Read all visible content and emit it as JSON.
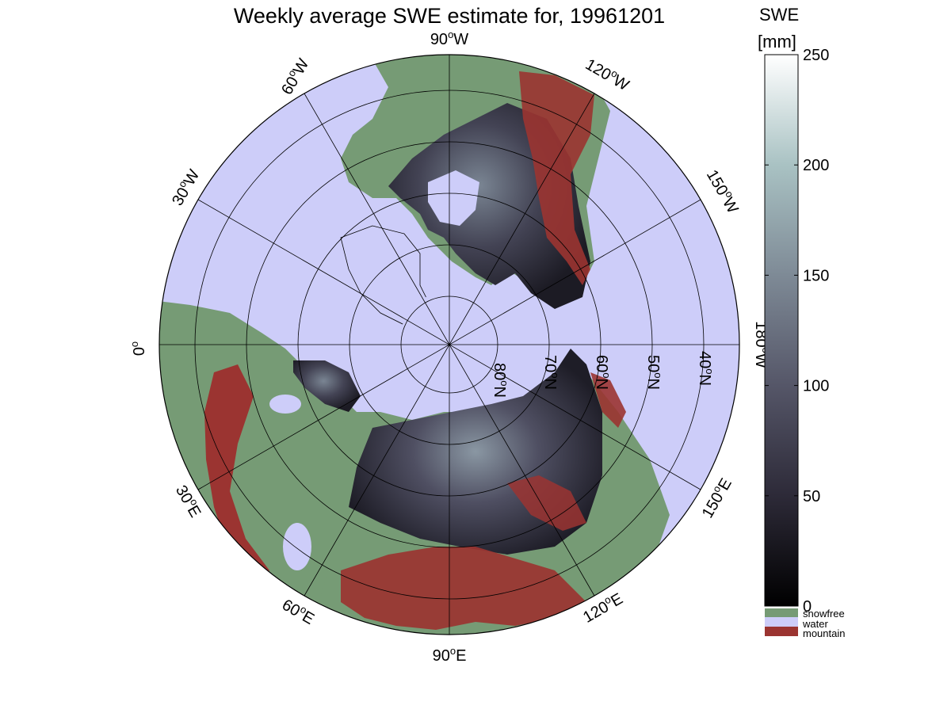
{
  "title": "Weekly average SWE estimate for, 19961201",
  "colorbar": {
    "title_line1": "SWE",
    "title_line2": "[mm]",
    "ticks": [
      {
        "value": 0,
        "label": "0"
      },
      {
        "value": 50,
        "label": "50"
      },
      {
        "value": 100,
        "label": "100"
      },
      {
        "value": 150,
        "label": "150"
      },
      {
        "value": 200,
        "label": "200"
      },
      {
        "value": 250,
        "label": "250"
      }
    ],
    "range": [
      0,
      250
    ],
    "gradient": [
      "#000000",
      "#2d2a38",
      "#555668",
      "#7e8a96",
      "#a9c2c3",
      "#ffffff"
    ]
  },
  "legend": [
    {
      "label": "snowfree",
      "color": "#769b75"
    },
    {
      "label": "water",
      "color": "#cdcdf9"
    },
    {
      "label": "mountain",
      "color": "#9b3431"
    }
  ],
  "longitude_labels": [
    {
      "id": "lon-90w",
      "deg": "90",
      "hemi": "W"
    },
    {
      "id": "lon-60w",
      "deg": "60",
      "hemi": "W"
    },
    {
      "id": "lon-120w",
      "deg": "120",
      "hemi": "W"
    },
    {
      "id": "lon-30w",
      "deg": "30",
      "hemi": "W"
    },
    {
      "id": "lon-150w",
      "deg": "150",
      "hemi": "W"
    },
    {
      "id": "lon-0",
      "deg": "0",
      "hemi": ""
    },
    {
      "id": "lon-180w",
      "deg": "180",
      "hemi": "W"
    },
    {
      "id": "lon-30e",
      "deg": "30",
      "hemi": "E"
    },
    {
      "id": "lon-150e",
      "deg": "150",
      "hemi": "E"
    },
    {
      "id": "lon-60e",
      "deg": "60",
      "hemi": "E"
    },
    {
      "id": "lon-120e",
      "deg": "120",
      "hemi": "E"
    },
    {
      "id": "lon-90e",
      "deg": "90",
      "hemi": "E"
    }
  ],
  "latitude_labels": [
    {
      "id": "lat-80n",
      "deg": "80",
      "hemi": "N"
    },
    {
      "id": "lat-70n",
      "deg": "70",
      "hemi": "N"
    },
    {
      "id": "lat-60n",
      "deg": "60",
      "hemi": "N"
    },
    {
      "id": "lat-50n",
      "deg": "50",
      "hemi": "N"
    },
    {
      "id": "lat-40n",
      "deg": "40",
      "hemi": "N"
    }
  ],
  "map_colors": {
    "water": "#cdcdf9",
    "snowfree": "#769b75",
    "mountain": "#9b3431",
    "snow_low": "#23222c",
    "snow_mid": "#4a4a5c",
    "snow_high": "#8b99a3"
  }
}
